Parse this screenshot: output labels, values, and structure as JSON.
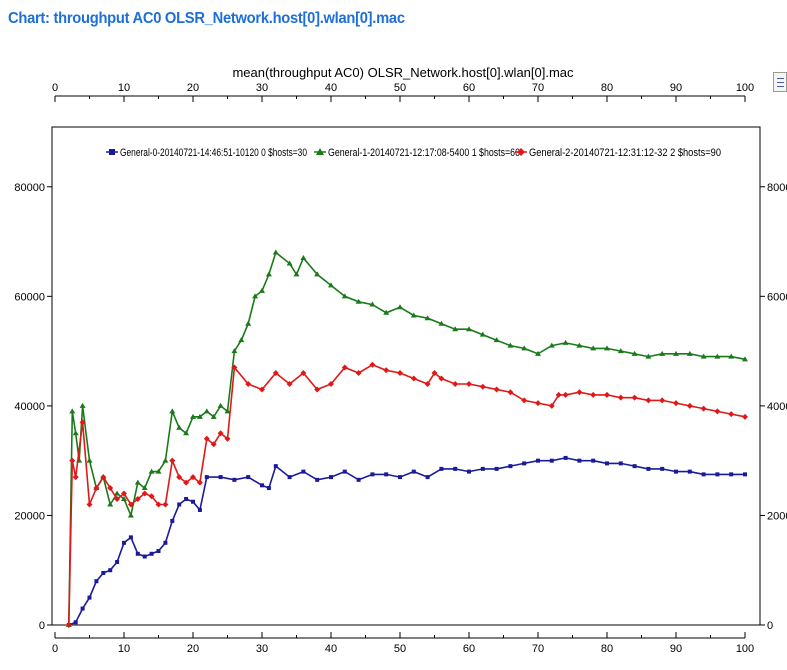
{
  "page": {
    "title": "Chart: throughput AC0 OLSR_Network.host[0].wlan[0].mac"
  },
  "icons": {
    "options": "chart-options-icon"
  },
  "chart_data": {
    "type": "line",
    "title": "mean(throughput AC0) OLSR_Network.host[0].wlan[0].mac",
    "xlim": [
      0,
      100
    ],
    "ylim": [
      0,
      90000
    ],
    "x_ticks": [
      0,
      10,
      20,
      30,
      40,
      50,
      60,
      70,
      80,
      90,
      100
    ],
    "y_ticks": [
      0,
      20000,
      40000,
      60000,
      80000
    ],
    "x_axes": [
      "top",
      "bottom"
    ],
    "y_axes": [
      "left",
      "right"
    ],
    "legend_position": "top",
    "series": [
      {
        "name": "General-0-20140721-14:46:51-10120 0 $hosts=30",
        "color": "#1a1a9a",
        "marker": "square",
        "points": [
          [
            2,
            0
          ],
          [
            3,
            500
          ],
          [
            4,
            3000
          ],
          [
            5,
            5000
          ],
          [
            6,
            8000
          ],
          [
            7,
            9500
          ],
          [
            8,
            10000
          ],
          [
            9,
            11500
          ],
          [
            10,
            15000
          ],
          [
            11,
            16000
          ],
          [
            12,
            13000
          ],
          [
            13,
            12500
          ],
          [
            14,
            13000
          ],
          [
            15,
            13500
          ],
          [
            16,
            15000
          ],
          [
            17,
            19000
          ],
          [
            18,
            22000
          ],
          [
            19,
            23000
          ],
          [
            20,
            22500
          ],
          [
            21,
            21000
          ],
          [
            22,
            27000
          ],
          [
            24,
            27000
          ],
          [
            26,
            26500
          ],
          [
            28,
            27000
          ],
          [
            30,
            25500
          ],
          [
            31,
            25000
          ],
          [
            32,
            29000
          ],
          [
            34,
            27000
          ],
          [
            36,
            28000
          ],
          [
            38,
            26500
          ],
          [
            40,
            27000
          ],
          [
            42,
            28000
          ],
          [
            44,
            26500
          ],
          [
            46,
            27500
          ],
          [
            48,
            27500
          ],
          [
            50,
            27000
          ],
          [
            52,
            28000
          ],
          [
            54,
            27000
          ],
          [
            56,
            28500
          ],
          [
            58,
            28500
          ],
          [
            60,
            28000
          ],
          [
            62,
            28500
          ],
          [
            64,
            28500
          ],
          [
            66,
            29000
          ],
          [
            68,
            29500
          ],
          [
            70,
            30000
          ],
          [
            72,
            30000
          ],
          [
            74,
            30500
          ],
          [
            76,
            30000
          ],
          [
            78,
            30000
          ],
          [
            80,
            29500
          ],
          [
            82,
            29500
          ],
          [
            84,
            29000
          ],
          [
            86,
            28500
          ],
          [
            88,
            28500
          ],
          [
            90,
            28000
          ],
          [
            92,
            28000
          ],
          [
            94,
            27500
          ],
          [
            96,
            27500
          ],
          [
            98,
            27500
          ],
          [
            100,
            27500
          ]
        ]
      },
      {
        "name": "General-1-20140721-12:17:08-5400 1 $hosts=60",
        "color": "#1a7a1a",
        "marker": "triangle",
        "points": [
          [
            2,
            0
          ],
          [
            2.5,
            39000
          ],
          [
            3,
            35000
          ],
          [
            3.5,
            30000
          ],
          [
            4,
            40000
          ],
          [
            5,
            30000
          ],
          [
            6,
            25000
          ],
          [
            7,
            27000
          ],
          [
            8,
            22000
          ],
          [
            9,
            24000
          ],
          [
            10,
            23000
          ],
          [
            11,
            20000
          ],
          [
            12,
            26000
          ],
          [
            13,
            25000
          ],
          [
            14,
            28000
          ],
          [
            15,
            28000
          ],
          [
            16,
            30000
          ],
          [
            17,
            39000
          ],
          [
            18,
            36000
          ],
          [
            19,
            35000
          ],
          [
            20,
            38000
          ],
          [
            21,
            38000
          ],
          [
            22,
            39000
          ],
          [
            23,
            38000
          ],
          [
            24,
            40000
          ],
          [
            25,
            39000
          ],
          [
            26,
            50000
          ],
          [
            27,
            52000
          ],
          [
            28,
            55000
          ],
          [
            29,
            60000
          ],
          [
            30,
            61000
          ],
          [
            31,
            64000
          ],
          [
            32,
            68000
          ],
          [
            34,
            66000
          ],
          [
            35,
            64000
          ],
          [
            36,
            67000
          ],
          [
            38,
            64000
          ],
          [
            40,
            62000
          ],
          [
            42,
            60000
          ],
          [
            44,
            59000
          ],
          [
            46,
            58500
          ],
          [
            48,
            57000
          ],
          [
            50,
            58000
          ],
          [
            52,
            56500
          ],
          [
            54,
            56000
          ],
          [
            56,
            55000
          ],
          [
            58,
            54000
          ],
          [
            60,
            54000
          ],
          [
            62,
            53000
          ],
          [
            64,
            52000
          ],
          [
            66,
            51000
          ],
          [
            68,
            50500
          ],
          [
            70,
            49500
          ],
          [
            72,
            51000
          ],
          [
            74,
            51500
          ],
          [
            76,
            51000
          ],
          [
            78,
            50500
          ],
          [
            80,
            50500
          ],
          [
            82,
            50000
          ],
          [
            84,
            49500
          ],
          [
            86,
            49000
          ],
          [
            88,
            49500
          ],
          [
            90,
            49500
          ],
          [
            92,
            49500
          ],
          [
            94,
            49000
          ],
          [
            96,
            49000
          ],
          [
            98,
            49000
          ],
          [
            100,
            48500
          ]
        ]
      },
      {
        "name": "General-2-20140721-12:31:12-32 2 $hosts=90",
        "color": "#e01818",
        "marker": "diamond",
        "points": [
          [
            2,
            0
          ],
          [
            2.5,
            30000
          ],
          [
            3,
            27000
          ],
          [
            4,
            37000
          ],
          [
            5,
            22000
          ],
          [
            6,
            25000
          ],
          [
            7,
            27000
          ],
          [
            8,
            25000
          ],
          [
            9,
            23000
          ],
          [
            10,
            24000
          ],
          [
            11,
            22000
          ],
          [
            12,
            23000
          ],
          [
            13,
            24000
          ],
          [
            14,
            23500
          ],
          [
            15,
            22000
          ],
          [
            16,
            22000
          ],
          [
            17,
            30000
          ],
          [
            18,
            27000
          ],
          [
            19,
            26000
          ],
          [
            20,
            27000
          ],
          [
            21,
            26000
          ],
          [
            22,
            34000
          ],
          [
            23,
            33000
          ],
          [
            24,
            35000
          ],
          [
            25,
            34000
          ],
          [
            26,
            47000
          ],
          [
            28,
            44000
          ],
          [
            30,
            43000
          ],
          [
            32,
            46000
          ],
          [
            34,
            44000
          ],
          [
            36,
            46000
          ],
          [
            38,
            43000
          ],
          [
            40,
            44000
          ],
          [
            42,
            47000
          ],
          [
            44,
            46000
          ],
          [
            46,
            47500
          ],
          [
            48,
            46500
          ],
          [
            50,
            46000
          ],
          [
            52,
            45000
          ],
          [
            54,
            44000
          ],
          [
            55,
            46000
          ],
          [
            56,
            45000
          ],
          [
            58,
            44000
          ],
          [
            60,
            44000
          ],
          [
            62,
            43500
          ],
          [
            64,
            43000
          ],
          [
            66,
            42500
          ],
          [
            68,
            41000
          ],
          [
            70,
            40500
          ],
          [
            72,
            40000
          ],
          [
            73,
            42000
          ],
          [
            74,
            42000
          ],
          [
            76,
            42500
          ],
          [
            78,
            42000
          ],
          [
            80,
            42000
          ],
          [
            82,
            41500
          ],
          [
            84,
            41500
          ],
          [
            86,
            41000
          ],
          [
            88,
            41000
          ],
          [
            90,
            40500
          ],
          [
            92,
            40000
          ],
          [
            94,
            39500
          ],
          [
            96,
            39000
          ],
          [
            98,
            38500
          ],
          [
            100,
            38000
          ]
        ]
      }
    ]
  }
}
